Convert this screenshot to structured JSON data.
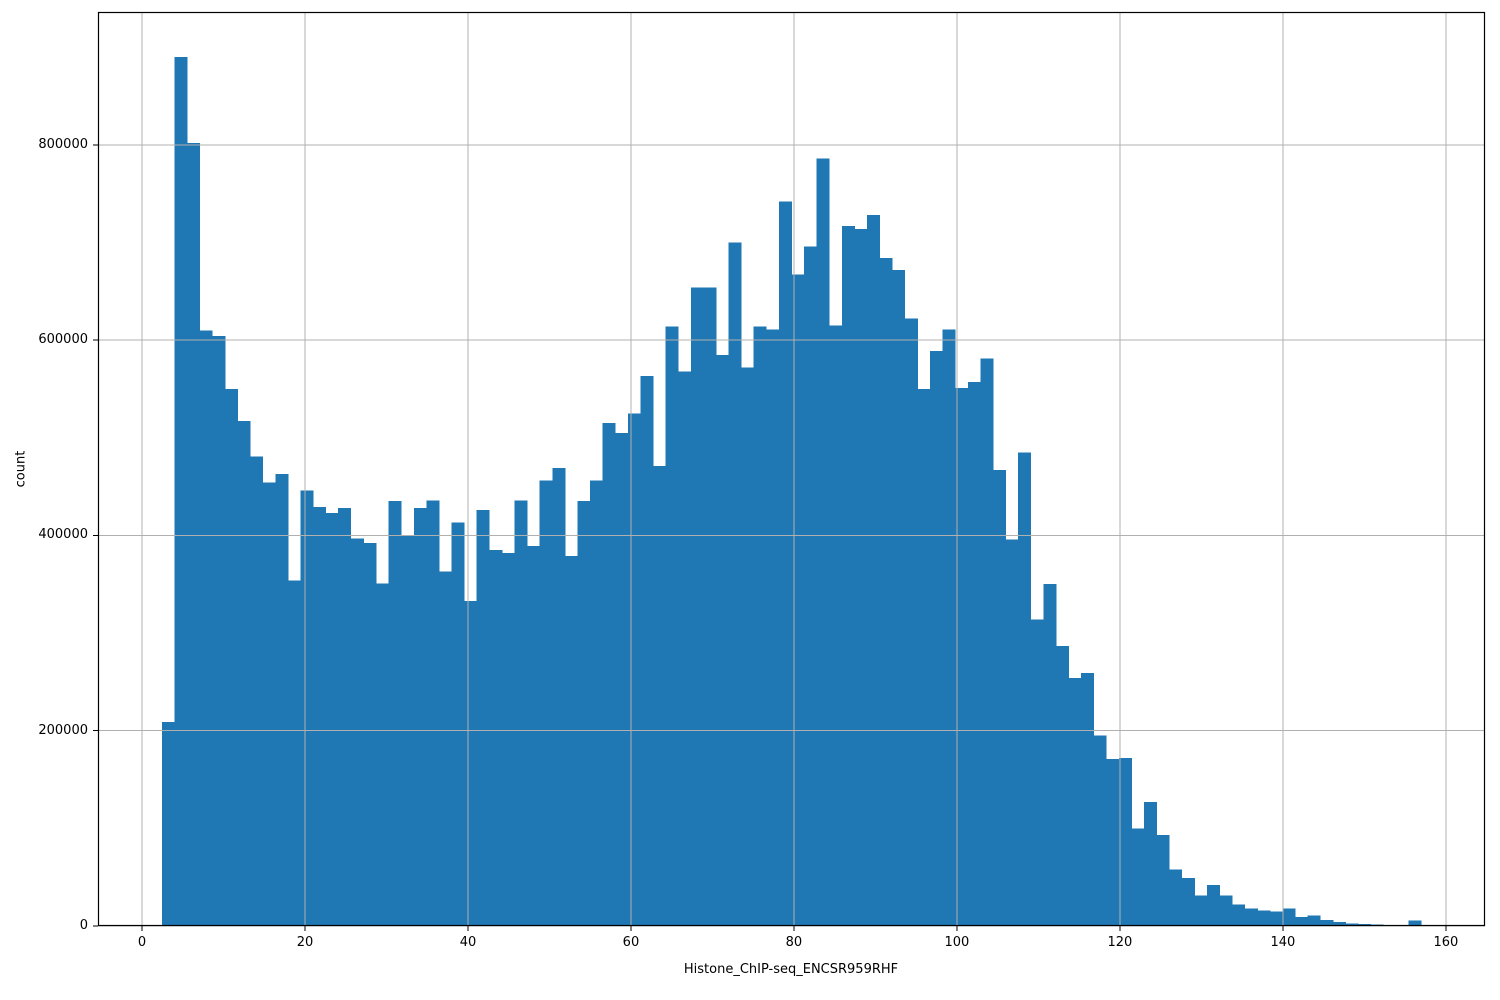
{
  "figure": {
    "background_color": "#ffffff",
    "bar_color": "#1f77b4",
    "grid_color": "#b0b0b0",
    "frame_color": "#000000",
    "text_color": "#000000"
  },
  "chart_data": {
    "type": "bar",
    "subtype": "histogram",
    "title": "",
    "xlabel": "Histone_ChIP-seq_ENCSR959RHF",
    "ylabel": "count",
    "xlim": [
      -5.4,
      164.8
    ],
    "ylim": [
      0,
      936000
    ],
    "x_ticks": [
      0,
      20,
      40,
      60,
      80,
      100,
      120,
      140,
      160
    ],
    "y_ticks": [
      0,
      200000,
      400000,
      600000,
      800000
    ],
    "grid": true,
    "legend": false,
    "bin_start": 2.45,
    "bin_width": 1.545,
    "counts": [
      209000,
      890000,
      802000,
      610000,
      604000,
      550000,
      517000,
      481000,
      454000,
      463000,
      354000,
      446000,
      429000,
      423000,
      428000,
      397000,
      392000,
      351000,
      435000,
      400000,
      428000,
      436000,
      363000,
      413000,
      333000,
      426000,
      385000,
      382000,
      436000,
      389000,
      456000,
      469000,
      379000,
      435000,
      456000,
      515000,
      505000,
      525000,
      563000,
      471000,
      614000,
      568000,
      654000,
      654000,
      585000,
      700000,
      572000,
      614000,
      611000,
      742000,
      667000,
      696000,
      786000,
      615000,
      717000,
      714000,
      728000,
      684000,
      672000,
      622000,
      550000,
      589000,
      611000,
      551000,
      557000,
      581000,
      467000,
      396000,
      485000,
      314000,
      350000,
      287000,
      254000,
      259000,
      195000,
      171000,
      172000,
      100000,
      127000,
      93000,
      58000,
      49000,
      31000,
      42000,
      31000,
      22000,
      18000,
      16000,
      15000,
      18000,
      9000,
      11000,
      6000,
      4000,
      2500,
      2000,
      1500,
      1000,
      800,
      5500
    ]
  }
}
